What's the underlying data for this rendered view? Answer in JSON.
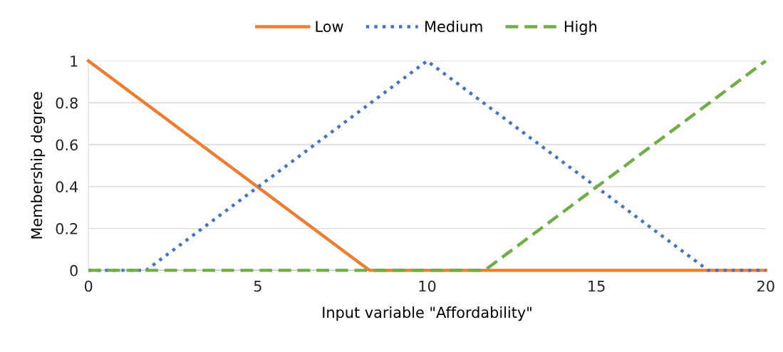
{
  "chart_data": {
    "type": "line",
    "xlabel": "Input variable \"Affordability\"",
    "ylabel": "Membership degree",
    "xlim": [
      0,
      20
    ],
    "xticks": [
      0,
      5,
      10,
      15,
      20
    ],
    "ylim": [
      0,
      1
    ],
    "yticks": [
      0,
      0.2,
      0.4,
      0.6,
      0.8,
      1
    ],
    "grid": "y",
    "legend": "top",
    "marker": "none",
    "series": [
      {
        "name": "Low",
        "color": "#ed7d31",
        "line_style": "solid",
        "x": [
          0,
          8.3,
          20
        ],
        "values": [
          1,
          0,
          0
        ]
      },
      {
        "name": "Medium",
        "color": "#4472c4",
        "line_style": "dotted",
        "x": [
          0,
          1.7,
          10,
          18.3,
          20
        ],
        "values": [
          0,
          0,
          1,
          0,
          0
        ]
      },
      {
        "name": "High",
        "color": "#70ad47",
        "line_style": "dashed",
        "x": [
          0,
          11.7,
          20
        ],
        "values": [
          0,
          0,
          1
        ]
      }
    ]
  }
}
